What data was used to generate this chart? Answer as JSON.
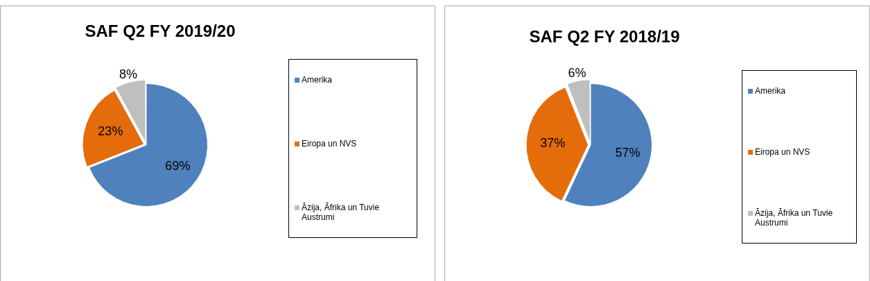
{
  "chart_data": [
    {
      "type": "pie",
      "title": "SAF Q2 FY 2019/20",
      "categories": [
        "Amerika",
        "Eiropa un NVS",
        "Āzija, Āfrika un Tuvie Austrumi"
      ],
      "values": [
        69,
        23,
        8
      ],
      "value_labels": [
        "69%",
        "23%",
        "8%"
      ],
      "colors": [
        "#4f81bd",
        "#e46c0a",
        "#bfbfbf"
      ],
      "legend": "right"
    },
    {
      "type": "pie",
      "title": "SAF Q2 FY 2018/19",
      "categories": [
        "Amerika",
        "Eiropa un NVS",
        "Āzija, Āfrika un Tuvie Austrumi"
      ],
      "values": [
        57,
        37,
        6
      ],
      "value_labels": [
        "57%",
        "37%",
        "6%"
      ],
      "colors": [
        "#4f81bd",
        "#e46c0a",
        "#bfbfbf"
      ],
      "legend": "right"
    }
  ]
}
